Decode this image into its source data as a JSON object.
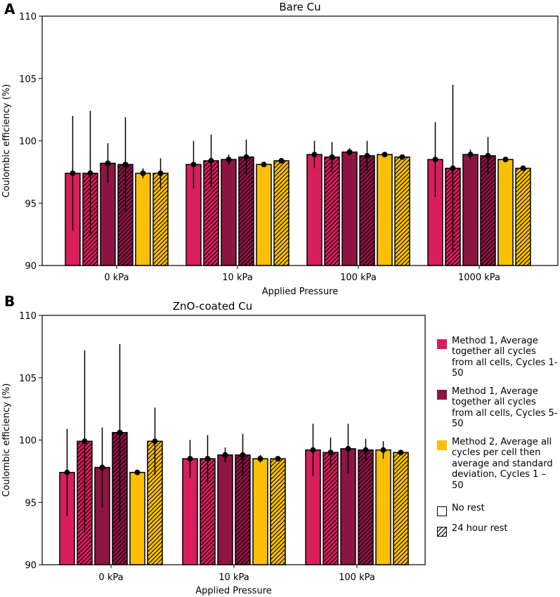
{
  "colors": {
    "m1_c1_50": "#d81e5b",
    "m1_c5_50": "#8e1443",
    "m2": "#fcbf08"
  },
  "legend": [
    {
      "label": "Method 1, Average together all cycles from all cells, Cycles 1-50",
      "color": "#d81e5b",
      "hatch": false
    },
    {
      "label": "Method 1, Average together all cycles from all cells, Cycles 5-50",
      "color": "#8e1443",
      "hatch": false
    },
    {
      "label": "Method 2, Average all cycles per cell then average and standard deviation, Cycles 1 – 50",
      "color": "#fcbf08",
      "hatch": false
    },
    {
      "label": "No rest",
      "color": "#ffffff",
      "hatch": false
    },
    {
      "label": "24 hour rest",
      "color": "#ffffff",
      "hatch": true
    }
  ],
  "chart_data": [
    {
      "type": "bar",
      "panel_label": "A",
      "title": "Bare Cu",
      "xlabel": "Applied Pressure",
      "ylabel": "Coulombic efficiency (%)",
      "ylim": [
        90,
        110
      ],
      "yticks": [
        "90",
        "95",
        "100",
        "105",
        "110"
      ],
      "categories": [
        "0 kPa",
        "10 kPa",
        "100 kPa",
        "1000 kPa"
      ],
      "series": [
        {
          "name": "Method 1, Cycles 1-50, No rest",
          "color": "#d81e5b",
          "hatch": false,
          "values": [
            97.4,
            98.1,
            98.9,
            98.5
          ],
          "errors": [
            4.6,
            1.9,
            1.1,
            3.0
          ]
        },
        {
          "name": "Method 1, Cycles 1-50, 24 hour rest",
          "color": "#d81e5b",
          "hatch": true,
          "values": [
            97.4,
            98.4,
            98.7,
            97.8
          ],
          "errors": [
            5.0,
            2.1,
            1.2,
            6.7
          ]
        },
        {
          "name": "Method 1, Cycles 5-50, No rest",
          "color": "#8e1443",
          "hatch": false,
          "values": [
            98.2,
            98.5,
            99.1,
            98.9
          ],
          "errors": [
            1.6,
            0.4,
            0.3,
            0.4
          ]
        },
        {
          "name": "Method 1, Cycles 5-50, 24 hour rest",
          "color": "#8e1443",
          "hatch": true,
          "values": [
            98.1,
            98.7,
            98.8,
            98.8
          ],
          "errors": [
            3.8,
            1.4,
            1.2,
            1.5
          ]
        },
        {
          "name": "Method 2, Cycles 1-50, No rest",
          "color": "#fcbf08",
          "hatch": false,
          "values": [
            97.4,
            98.1,
            98.9,
            98.5
          ],
          "errors": [
            0.4,
            0.1,
            0.1,
            0.1
          ]
        },
        {
          "name": "Method 2, Cycles 1-50, 24 hour rest",
          "color": "#fcbf08",
          "hatch": true,
          "values": [
            97.4,
            98.4,
            98.7,
            97.8
          ],
          "errors": [
            1.2,
            0.1,
            0.1,
            0.2
          ]
        }
      ]
    },
    {
      "type": "bar",
      "panel_label": "B",
      "title": "ZnO-coated Cu",
      "xlabel": "Applied Pressure",
      "ylabel": "Coulombic efficiency (%)",
      "ylim": [
        90,
        110
      ],
      "yticks": [
        "90",
        "95",
        "100",
        "105",
        "110"
      ],
      "categories": [
        "0 kPa",
        "10 kPa",
        "100 kPa"
      ],
      "series": [
        {
          "name": "Method 1, Cycles 1-50, No rest",
          "color": "#d81e5b",
          "hatch": false,
          "values": [
            97.4,
            98.5,
            99.2
          ],
          "errors": [
            3.5,
            1.5,
            2.1
          ]
        },
        {
          "name": "Method 1, Cycles 1-50, 24 hour rest",
          "color": "#d81e5b",
          "hatch": true,
          "values": [
            99.9,
            98.5,
            99.0
          ],
          "errors": [
            7.3,
            1.9,
            1.2
          ]
        },
        {
          "name": "Method 1, Cycles 5-50, No rest",
          "color": "#8e1443",
          "hatch": false,
          "values": [
            97.8,
            98.8,
            99.3
          ],
          "errors": [
            3.2,
            0.6,
            2.0
          ]
        },
        {
          "name": "Method 1, Cycles 5-50, 24 hour rest",
          "color": "#8e1443",
          "hatch": true,
          "values": [
            100.6,
            98.8,
            99.2
          ],
          "errors": [
            7.1,
            1.7,
            0.9
          ]
        },
        {
          "name": "Method 2, Cycles 1-50, No rest",
          "color": "#fcbf08",
          "hatch": false,
          "values": [
            97.4,
            98.5,
            99.2
          ],
          "errors": [
            0.2,
            0.3,
            0.7
          ]
        },
        {
          "name": "Method 2, Cycles 1-50, 24 hour rest",
          "color": "#fcbf08",
          "hatch": true,
          "values": [
            99.9,
            98.5,
            99.0
          ],
          "errors": [
            2.7,
            0.1,
            0.1
          ]
        }
      ]
    }
  ]
}
